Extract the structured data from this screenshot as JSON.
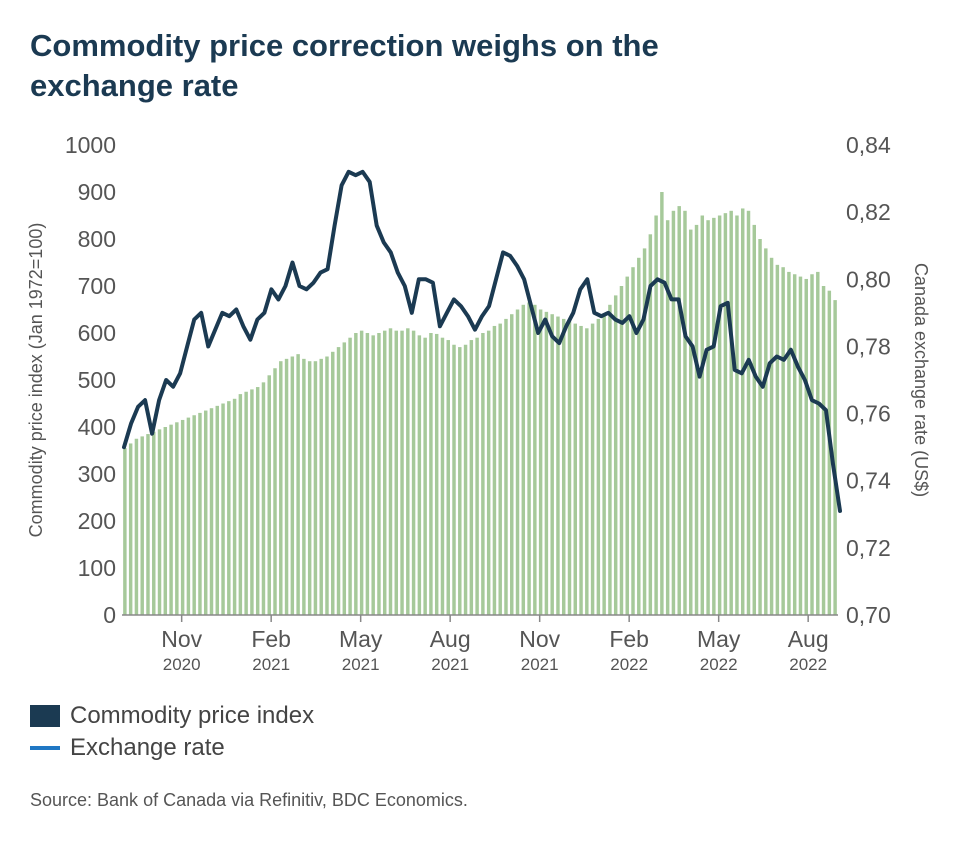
{
  "title": "Commodity price correction weighs on the exchange rate",
  "legend": {
    "commodity": "Commodity price index",
    "exchange": "Exchange rate"
  },
  "source": "Source: Bank of Canada via Refinitiv, BDC Economics.",
  "colors": {
    "bars": "#a6c99a",
    "line": "#1b3a52",
    "legend_line": "#1f77c4",
    "axis": "#888888"
  },
  "chart_data": {
    "type": "bar+line",
    "x_start": "2020-09",
    "x_end": "2022-09",
    "x_ticks": [
      {
        "month": "Nov",
        "year": "2020",
        "date": "2020-11"
      },
      {
        "month": "Feb",
        "year": "2021",
        "date": "2021-02"
      },
      {
        "month": "May",
        "year": "2021",
        "date": "2021-05"
      },
      {
        "month": "Aug",
        "year": "2021",
        "date": "2021-08"
      },
      {
        "month": "Nov",
        "year": "2021",
        "date": "2021-11"
      },
      {
        "month": "Feb",
        "year": "2022",
        "date": "2022-02"
      },
      {
        "month": "May",
        "year": "2022",
        "date": "2022-05"
      },
      {
        "month": "Aug",
        "year": "2022",
        "date": "2022-08"
      }
    ],
    "y_left": {
      "label": "Commodity price index (Jan 1972=100)",
      "ylim": [
        0,
        1000
      ],
      "ticks": [
        "0",
        "100",
        "200",
        "300",
        "400",
        "500",
        "600",
        "700",
        "800",
        "900",
        "1000"
      ]
    },
    "y_right": {
      "label": "Canada exchange rate (US$)",
      "ylim": [
        0.7,
        0.84
      ],
      "ticks": [
        "0,70",
        "0,72",
        "0,74",
        "0,76",
        "0,78",
        "0,80",
        "0,82",
        "0,84"
      ]
    },
    "series": [
      {
        "name": "Commodity price index",
        "type": "bar",
        "axis": "left",
        "values": [
          355,
          365,
          375,
          380,
          385,
          390,
          395,
          400,
          405,
          410,
          415,
          420,
          425,
          430,
          435,
          440,
          445,
          450,
          455,
          460,
          470,
          475,
          480,
          485,
          495,
          510,
          525,
          540,
          545,
          550,
          555,
          545,
          540,
          540,
          545,
          550,
          560,
          570,
          580,
          590,
          600,
          605,
          600,
          595,
          600,
          605,
          610,
          605,
          605,
          610,
          605,
          595,
          590,
          600,
          598,
          590,
          585,
          575,
          570,
          575,
          585,
          590,
          600,
          605,
          615,
          620,
          630,
          640,
          650,
          660,
          665,
          660,
          650,
          645,
          640,
          635,
          630,
          625,
          620,
          615,
          610,
          620,
          630,
          640,
          660,
          680,
          700,
          720,
          740,
          760,
          780,
          810,
          850,
          900,
          840,
          860,
          870,
          860,
          820,
          830,
          850,
          840,
          845,
          850,
          855,
          860,
          850,
          865,
          860,
          830,
          800,
          780,
          760,
          745,
          740,
          730,
          725,
          720,
          715,
          725,
          730,
          700,
          690,
          670
        ]
      },
      {
        "name": "Exchange rate",
        "type": "line",
        "axis": "right",
        "values": [
          0.75,
          0.757,
          0.762,
          0.764,
          0.754,
          0.764,
          0.77,
          0.768,
          0.772,
          0.78,
          0.788,
          0.79,
          0.78,
          0.785,
          0.79,
          0.789,
          0.791,
          0.786,
          0.782,
          0.788,
          0.79,
          0.797,
          0.794,
          0.798,
          0.805,
          0.798,
          0.797,
          0.799,
          0.802,
          0.803,
          0.816,
          0.828,
          0.832,
          0.831,
          0.832,
          0.829,
          0.816,
          0.811,
          0.808,
          0.802,
          0.798,
          0.79,
          0.8,
          0.8,
          0.799,
          0.786,
          0.79,
          0.794,
          0.792,
          0.789,
          0.785,
          0.789,
          0.792,
          0.8,
          0.808,
          0.807,
          0.804,
          0.8,
          0.792,
          0.784,
          0.788,
          0.783,
          0.781,
          0.786,
          0.79,
          0.797,
          0.8,
          0.79,
          0.789,
          0.79,
          0.788,
          0.787,
          0.789,
          0.784,
          0.788,
          0.798,
          0.8,
          0.799,
          0.794,
          0.794,
          0.783,
          0.78,
          0.771,
          0.779,
          0.78,
          0.792,
          0.793,
          0.773,
          0.772,
          0.776,
          0.771,
          0.768,
          0.775,
          0.777,
          0.776,
          0.779,
          0.774,
          0.77,
          0.764,
          0.763,
          0.761,
          0.745,
          0.731
        ]
      }
    ]
  }
}
